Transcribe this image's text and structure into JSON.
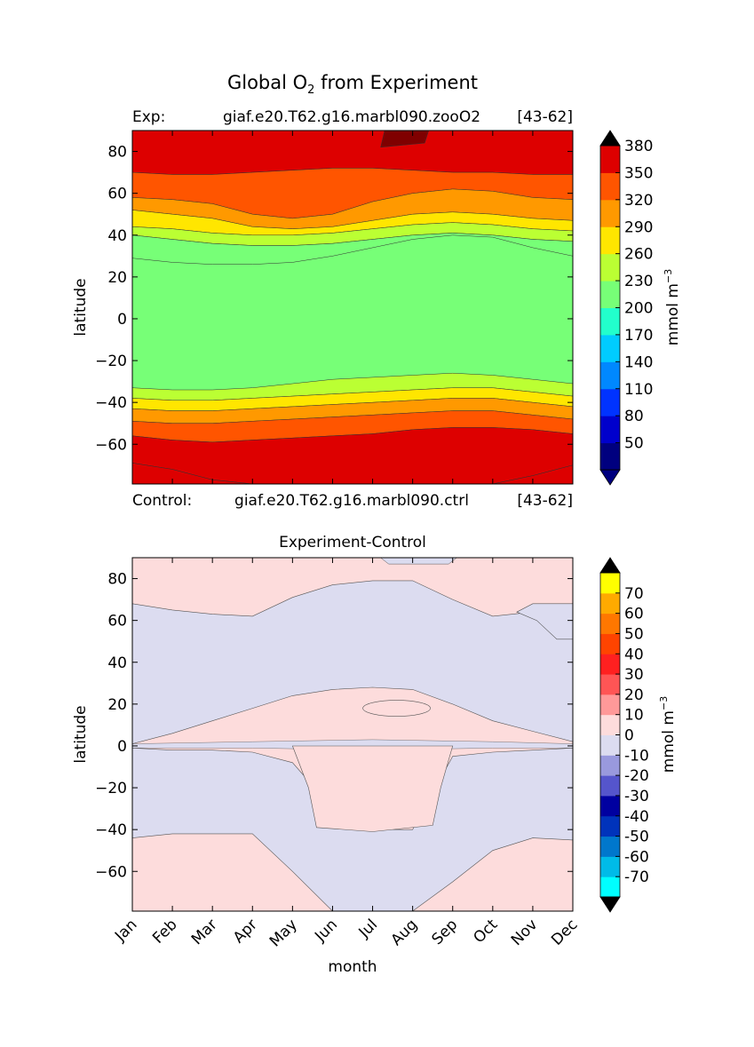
{
  "title_main": "Global O",
  "title_sub": "2",
  "title_rest": " from Experiment",
  "top": {
    "exp_label": "Exp:",
    "exp_name": "giaf.e20.T62.g16.marbl090.zooO2",
    "exp_years": "[43-62]",
    "ctrl_label": "Control:",
    "ctrl_name": "giaf.e20.T62.g16.marbl090.ctrl",
    "ctrl_years": "[43-62]",
    "ylabel": "latitude",
    "cbar_label": "mmol m",
    "cbar_exp": "−3"
  },
  "bottom": {
    "title": "Experiment-Control",
    "ylabel": "latitude",
    "xlabel": "month",
    "cbar_label": "mmol m",
    "cbar_exp": "−3"
  },
  "colors": {
    "top_levels": [
      "#00007f",
      "#0000cc",
      "#0033ff",
      "#0088ff",
      "#00ccff",
      "#22ffcc",
      "#77ff77",
      "#bbff33",
      "#ffe600",
      "#ff9900",
      "#ff5500",
      "#dd0000",
      "#7f0000"
    ],
    "top_under": "#00007f",
    "top_over": "#000000",
    "bot_levels": [
      "#00ffff",
      "#00bbe8",
      "#0077cc",
      "#0033bb",
      "#0000a0",
      "#5555cc",
      "#9999dd",
      "#dcdcf0",
      "#fddcdc",
      "#ff9999",
      "#ff5555",
      "#ff2020",
      "#ff4400",
      "#ff7700",
      "#ffaa00",
      "#ffff00"
    ],
    "bot_under": "#000000",
    "bot_over": "#000000"
  },
  "chart_data": [
    {
      "type": "heatmap",
      "title": "Global O2 from Experiment",
      "xlabel": "",
      "ylabel": "latitude",
      "x": [
        "Jan",
        "Feb",
        "Mar",
        "Apr",
        "May",
        "Jun",
        "Jul",
        "Aug",
        "Sep",
        "Oct",
        "Nov",
        "Dec"
      ],
      "ylim": [
        -79,
        90
      ],
      "yticks": [
        80,
        60,
        40,
        20,
        0,
        -20,
        -40,
        -60
      ],
      "colorbar_levels": [
        50,
        80,
        110,
        140,
        170,
        200,
        230,
        260,
        290,
        320,
        350,
        380
      ],
      "colorbar_unit": "mmol m-3",
      "contour_boundaries": [
        {
          "level": 350,
          "lat": [
            70,
            69,
            69,
            70,
            71,
            72,
            72,
            71,
            70,
            70,
            69,
            69
          ]
        },
        {
          "level": 320,
          "lat": [
            58,
            57,
            55,
            50,
            48,
            50,
            56,
            60,
            62,
            61,
            58,
            57
          ]
        },
        {
          "level": 290,
          "lat": [
            52,
            50,
            48,
            44,
            43,
            44,
            47,
            50,
            51,
            50,
            48,
            47
          ]
        },
        {
          "level": 260,
          "lat": [
            44,
            43,
            41,
            40,
            40,
            41,
            43,
            45,
            46,
            45,
            43,
            42
          ]
        },
        {
          "level": 230,
          "lat": [
            40,
            38,
            36,
            35,
            35,
            36,
            38,
            40,
            41,
            40,
            38,
            37
          ]
        },
        {
          "level": 200,
          "lat": [
            29,
            27,
            26,
            26,
            27,
            30,
            34,
            38,
            40,
            39,
            34,
            30
          ]
        },
        {
          "level": 200,
          "lat": [
            -33,
            -34,
            -34,
            -33,
            -31,
            -29,
            -28,
            -27,
            -26,
            -27,
            -29,
            -31
          ]
        },
        {
          "level": 230,
          "lat": [
            -38,
            -39,
            -39,
            -38,
            -37,
            -36,
            -35,
            -34,
            -33,
            -33,
            -35,
            -37
          ]
        },
        {
          "level": 260,
          "lat": [
            -43,
            -44,
            -44,
            -43,
            -42,
            -41,
            -40,
            -39,
            -38,
            -38,
            -40,
            -42
          ]
        },
        {
          "level": 290,
          "lat": [
            -49,
            -50,
            -50,
            -49,
            -48,
            -47,
            -46,
            -45,
            -44,
            -44,
            -46,
            -48
          ]
        },
        {
          "level": 320,
          "lat": [
            -56,
            -58,
            -59,
            -58,
            -57,
            -56,
            -55,
            -53,
            -52,
            -52,
            -53,
            -55
          ]
        },
        {
          "level": 350,
          "lat": [
            -69,
            -72,
            -77,
            -79,
            -79,
            -79,
            -79,
            -79,
            -79,
            -79,
            -75,
            -70
          ]
        }
      ]
    },
    {
      "type": "heatmap",
      "title": "Experiment-Control",
      "xlabel": "month",
      "ylabel": "latitude",
      "x": [
        "Jan",
        "Feb",
        "Mar",
        "Apr",
        "May",
        "Jun",
        "Jul",
        "Aug",
        "Sep",
        "Oct",
        "Nov",
        "Dec"
      ],
      "ylim": [
        -79,
        90
      ],
      "yticks": [
        80,
        60,
        40,
        20,
        0,
        -20,
        -40,
        -60
      ],
      "colorbar_levels": [
        -70,
        -60,
        -50,
        -40,
        -30,
        -20,
        -10,
        0,
        10,
        20,
        30,
        40,
        50,
        60,
        70
      ],
      "colorbar_unit": "mmol m-3",
      "regions": [
        {
          "sign": "negative",
          "description": "northern band lat ~0 to ~80, widest May-Sep"
        },
        {
          "sign": "negative",
          "description": "southern band lat ~-45 to ~-5 Jan-Apr and Sep-Dec; ~-79 to ~-40 May-Sep"
        },
        {
          "sign": "positive",
          "description": "remaining areas, values 0 to 10"
        }
      ]
    }
  ]
}
